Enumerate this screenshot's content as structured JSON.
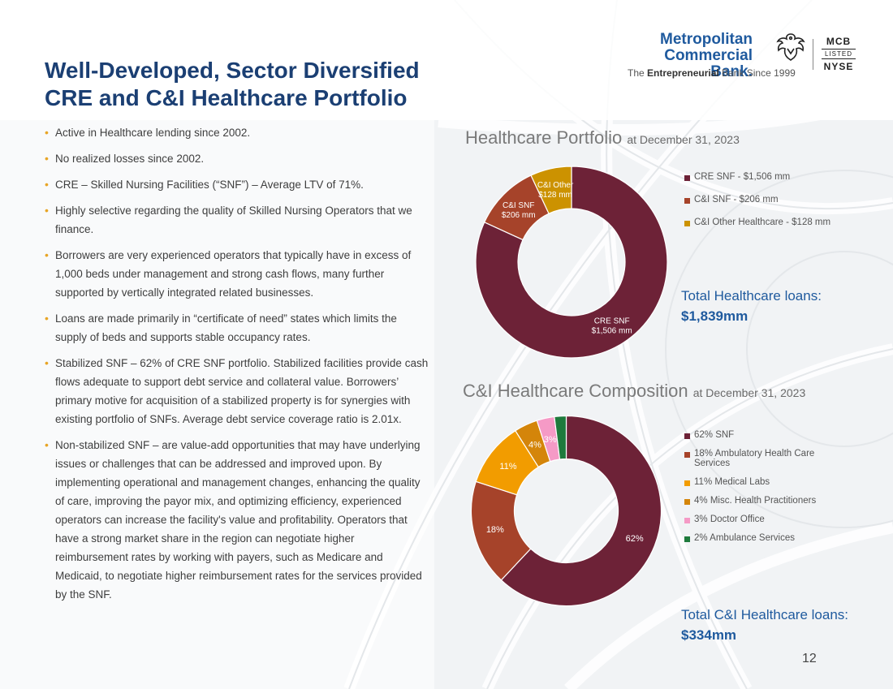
{
  "title": {
    "line1": "Well-Developed, Sector Diversified",
    "line2": "CRE and C&I Healthcare Portfolio"
  },
  "logo": {
    "name_line1": "Metropolitan",
    "name_line2": "Commercial Bank.",
    "tag_prefix": "The ",
    "tag_bold": "Entrepreneurial",
    "tag_suffix": " Bank Since 1999",
    "exchange_ticker": "MCB",
    "exchange_listed": "LISTED",
    "exchange_name": "NYSE"
  },
  "bullets": [
    "Active in Healthcare lending since 2002.",
    "No realized losses since 2002.",
    "CRE – Skilled Nursing Facilities (“SNF”) – Average LTV of 71%.",
    "Highly selective regarding the quality of Skilled Nursing Operators that we finance.",
    "Borrowers are very experienced operators that typically have in excess of 1,000 beds under management and strong cash flows, many further supported by vertically integrated related businesses.",
    "Loans are made primarily in “certificate of need” states which limits the supply of beds and supports stable occupancy rates.",
    "Stabilized SNF – 62% of CRE SNF portfolio. Stabilized facilities provide cash flows adequate to support debt service and collateral value. Borrowers’ primary motive for acquisition of a stabilized property is for synergies with existing portfolio of SNFs. Average debt service coverage ratio is 2.01x.",
    "Non-stabilized SNF – are value-add opportunities that may have underlying issues or challenges that can be addressed and improved upon. By implementing operational and management changes, enhancing the quality of care, improving the payor mix, and optimizing efficiency, experienced operators can increase the facility's value and profitability. Operators that have a strong market share in the region can negotiate higher reimbursement rates by working with payers, such as Medicare and Medicaid, to negotiate higher reimbursement rates for the services provided by the SNF."
  ],
  "page_number": "12",
  "chart_data": [
    {
      "type": "pie",
      "title": "Healthcare Portfolio",
      "subtitle": "at December 31, 2023",
      "unit": "$mm",
      "series": [
        {
          "name": "CRE SNF",
          "value": 1506,
          "color": "#6d2237",
          "label_line1": "CRE SNF",
          "label_line2": "$1,506 mm",
          "legend": "CRE SNF - $1,506 mm"
        },
        {
          "name": "C&I SNF",
          "value": 206,
          "color": "#a6432a",
          "label_line1": "C&I SNF",
          "label_line2": "$206 mm",
          "legend": "C&I SNF - $206 mm"
        },
        {
          "name": "C&I Other Healthcare",
          "value": 128,
          "color": "#cc9200",
          "label_line1": "C&I Other",
          "label_line2": "$128 mm",
          "legend": "C&I Other Healthcare - $128 mm"
        }
      ],
      "total_label": "Total Healthcare loans:",
      "total_value": "$1,839mm"
    },
    {
      "type": "pie",
      "title": "C&I Healthcare Composition",
      "subtitle": "at December 31, 2023",
      "unit": "%",
      "series": [
        {
          "name": "SNF",
          "value": 62,
          "color": "#6d2237",
          "label": "62%",
          "legend": "62% SNF"
        },
        {
          "name": "Ambulatory Health Care Services",
          "value": 18,
          "color": "#a6432a",
          "label": "18%",
          "legend": "18% Ambulatory Health Care Services"
        },
        {
          "name": "Medical Labs",
          "value": 11,
          "color": "#f29c00",
          "label": "11%",
          "legend": "11% Medical Labs"
        },
        {
          "name": "Misc. Health Practitioners",
          "value": 4,
          "color": "#d4850a",
          "label": "4%",
          "legend": "4% Misc. Health Practitioners"
        },
        {
          "name": "Doctor Office",
          "value": 3,
          "color": "#f59ac6",
          "label": "3%",
          "legend": "3% Doctor Office"
        },
        {
          "name": "Ambulance Services",
          "value": 2,
          "color": "#1e7a3c",
          "label": "",
          "legend": "2% Ambulance Services"
        }
      ],
      "total_label": "Total C&I Healthcare loans:",
      "total_value": "$334mm"
    }
  ]
}
